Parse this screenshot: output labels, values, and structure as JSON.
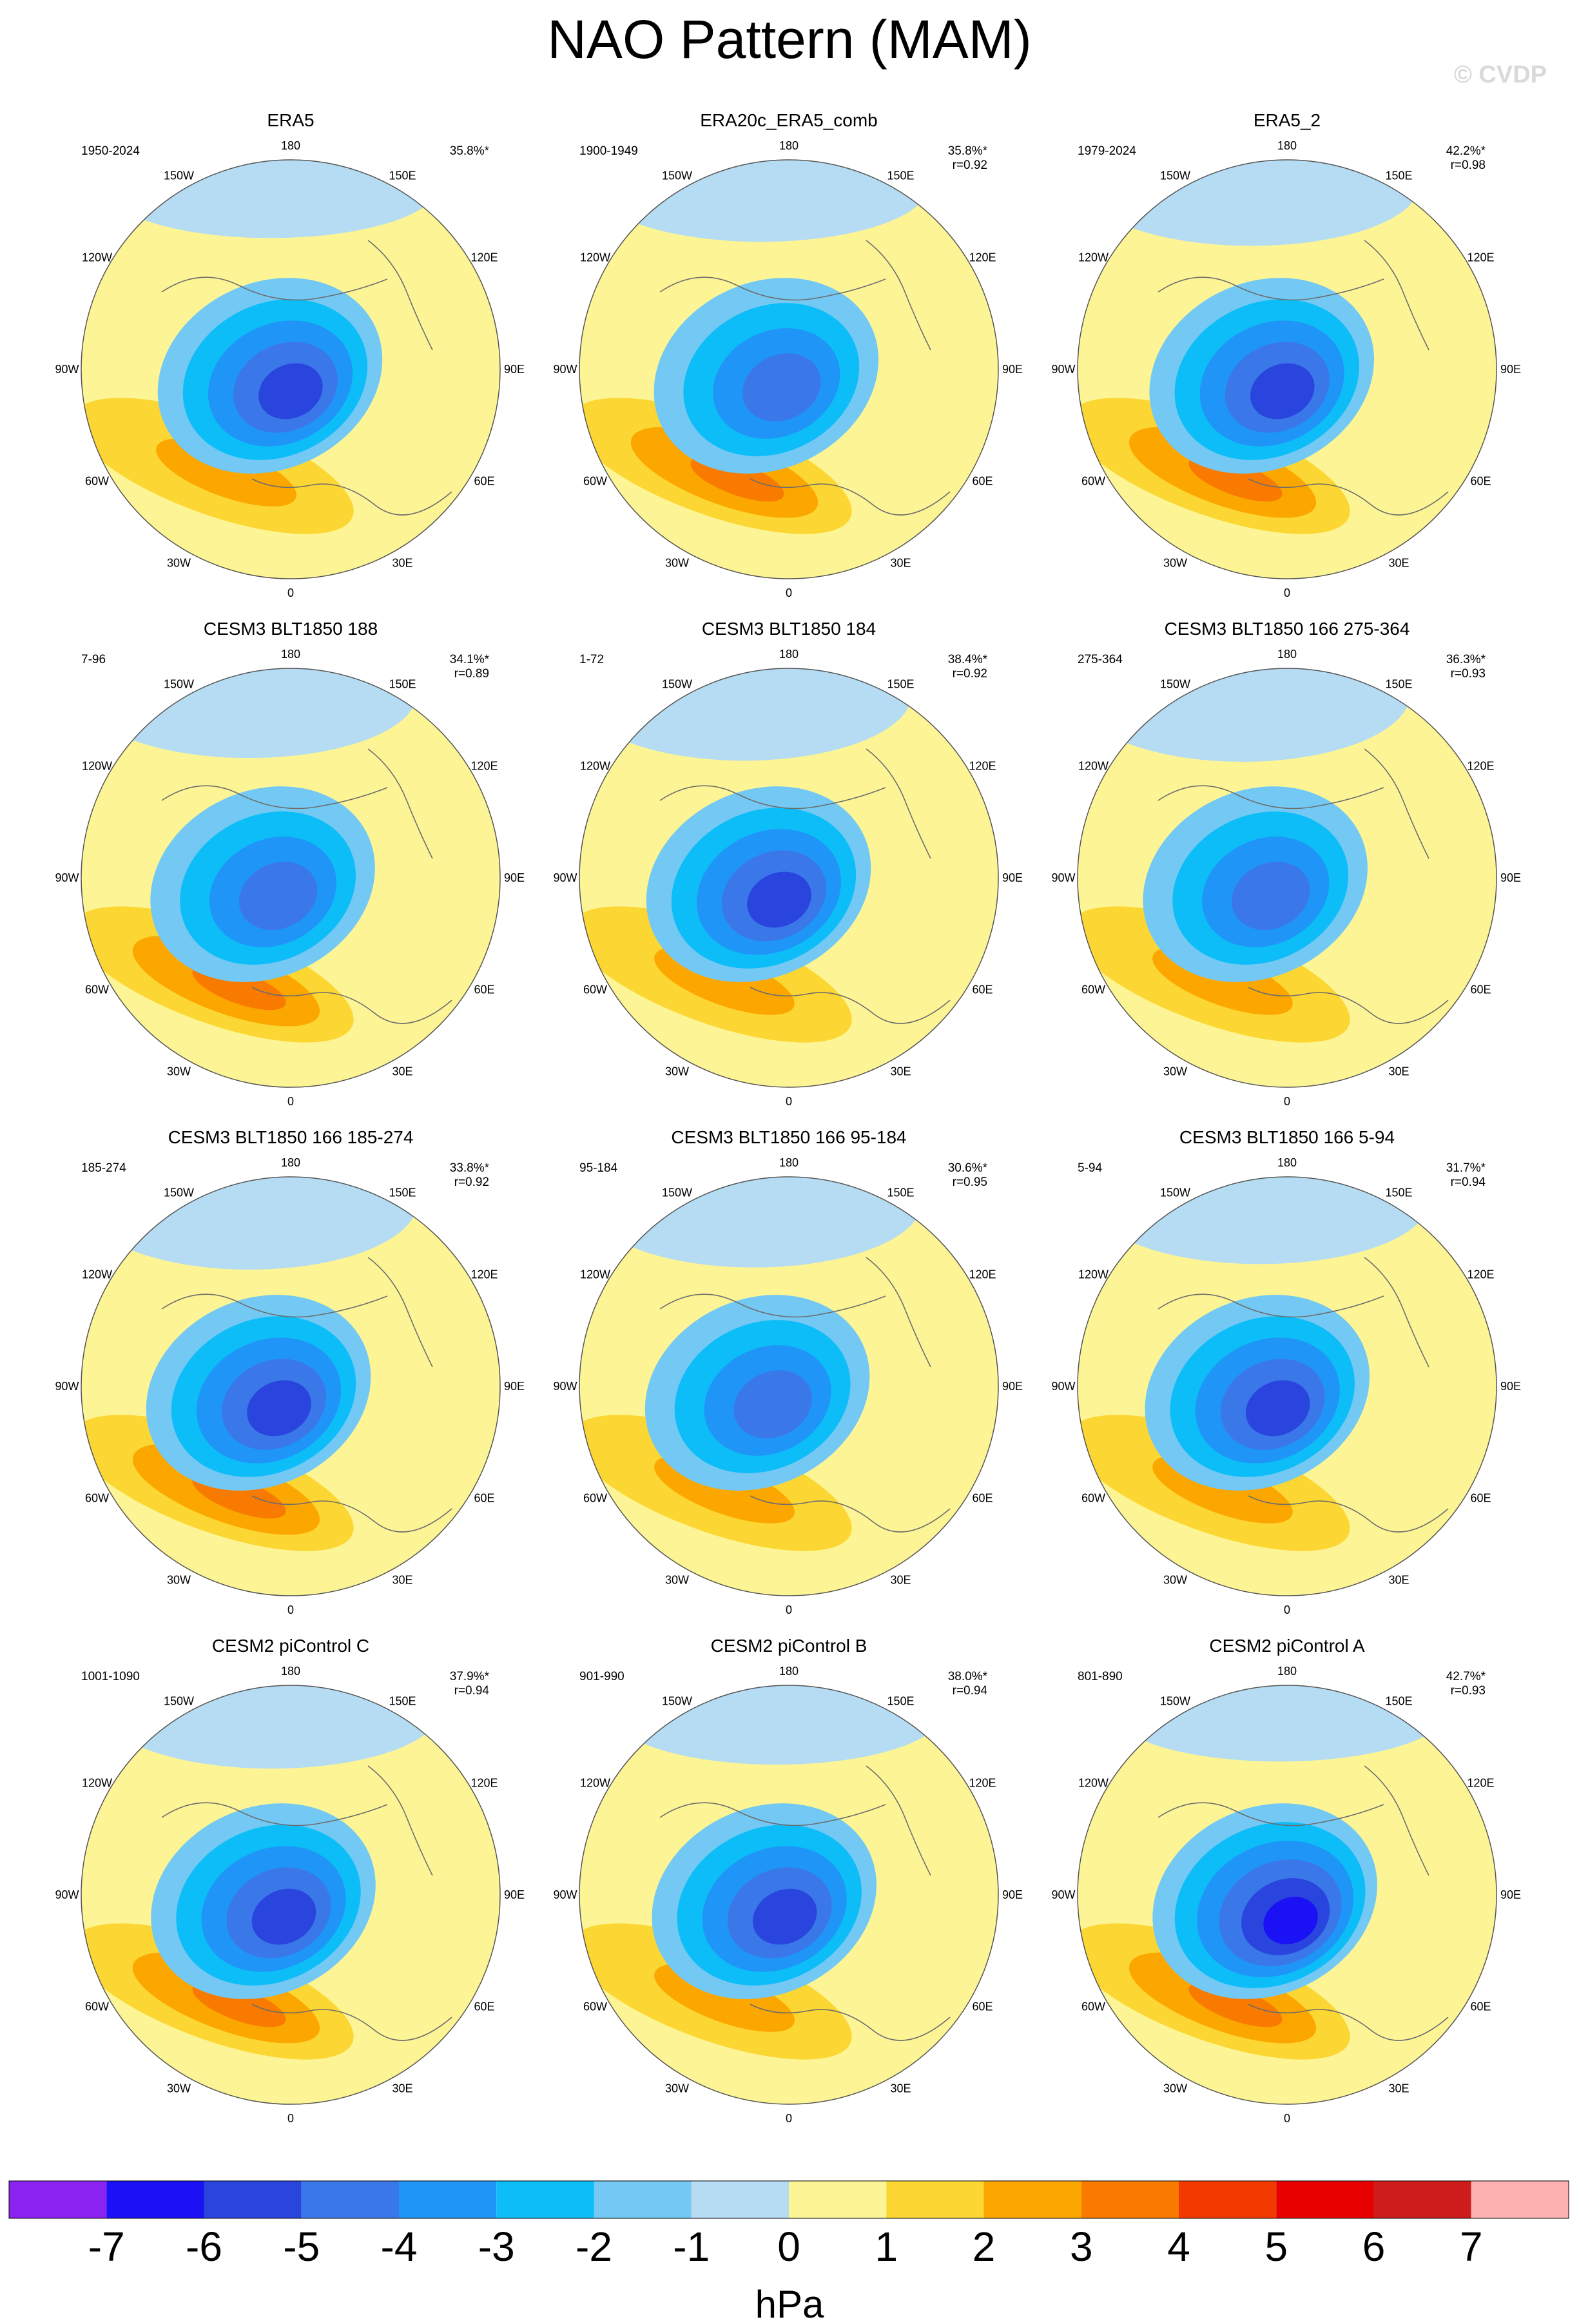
{
  "title": "NAO Pattern (MAM)",
  "credit": "© CVDP",
  "colorbar": {
    "unit": "hPa",
    "ticks": [
      "-7",
      "-6",
      "-5",
      "-4",
      "-3",
      "-2",
      "-1",
      "0",
      "1",
      "2",
      "3",
      "4",
      "5",
      "6",
      "7"
    ],
    "colors": [
      "#8b22f0",
      "#1a11f5",
      "#2a45dd",
      "#3a78ea",
      "#1f95f7",
      "#0cbdf7",
      "#73c9f3",
      "#b5dcf2",
      "#fdf595",
      "#fcd632",
      "#fca600",
      "#f87b00",
      "#f23a00",
      "#e60000",
      "#cc1c1c",
      "#fdb1b1"
    ]
  },
  "lon_labels": [
    "180",
    "150E",
    "120E",
    "90E",
    "60E",
    "30E",
    "0",
    "30W",
    "60W",
    "90W",
    "120W",
    "150W"
  ],
  "chart_data": {
    "type": "heatmap",
    "projection": "polar stereographic (Northern Hemisphere)",
    "variable": "NAO pattern sea-level pressure regression",
    "units": "hPa",
    "contour_levels": [
      -7,
      -6,
      -5,
      -4,
      -3,
      -2,
      -1,
      0,
      1,
      2,
      3,
      4,
      5,
      6,
      7
    ],
    "panels": [
      {
        "name": "ERA5",
        "period": "1950-2024",
        "pct": "35.8%*",
        "r": "",
        "min": -5,
        "max": 2
      },
      {
        "name": "ERA20c_ERA5_comb",
        "period": "1900-1949",
        "pct": "35.8%*",
        "r": "r=0.92",
        "min": -4,
        "max": 3
      },
      {
        "name": "ERA5_2",
        "period": "1979-2024",
        "pct": "42.2%*",
        "r": "r=0.98",
        "min": -5,
        "max": 3
      },
      {
        "name": "CESM3 BLT1850 188",
        "period": "7-96",
        "pct": "34.1%*",
        "r": "r=0.89",
        "min": -4,
        "max": 3
      },
      {
        "name": "CESM3 BLT1850 184",
        "period": "1-72",
        "pct": "38.4%*",
        "r": "r=0.92",
        "min": -5,
        "max": 2
      },
      {
        "name": "CESM3 BLT1850 166 275-364",
        "period": "275-364",
        "pct": "36.3%*",
        "r": "r=0.93",
        "min": -4,
        "max": 2
      },
      {
        "name": "CESM3 BLT1850 166 185-274",
        "period": "185-274",
        "pct": "33.8%*",
        "r": "r=0.92",
        "min": -5,
        "max": 3
      },
      {
        "name": "CESM3 BLT1850 166 95-184",
        "period": "95-184",
        "pct": "30.6%*",
        "r": "r=0.95",
        "min": -4,
        "max": 2
      },
      {
        "name": "CESM3 BLT1850 166 5-94",
        "period": "5-94",
        "pct": "31.7%*",
        "r": "r=0.94",
        "min": -5,
        "max": 2
      },
      {
        "name": "CESM2 piControl C",
        "period": "1001-1090",
        "pct": "37.9%*",
        "r": "r=0.94",
        "min": -5,
        "max": 3
      },
      {
        "name": "CESM2 piControl B",
        "period": "901-990",
        "pct": "38.0%*",
        "r": "r=0.94",
        "min": -5,
        "max": 2
      },
      {
        "name": "CESM2 piControl A",
        "period": "801-890",
        "pct": "42.7%*",
        "r": "r=0.93",
        "min": -6,
        "max": 3
      }
    ]
  }
}
